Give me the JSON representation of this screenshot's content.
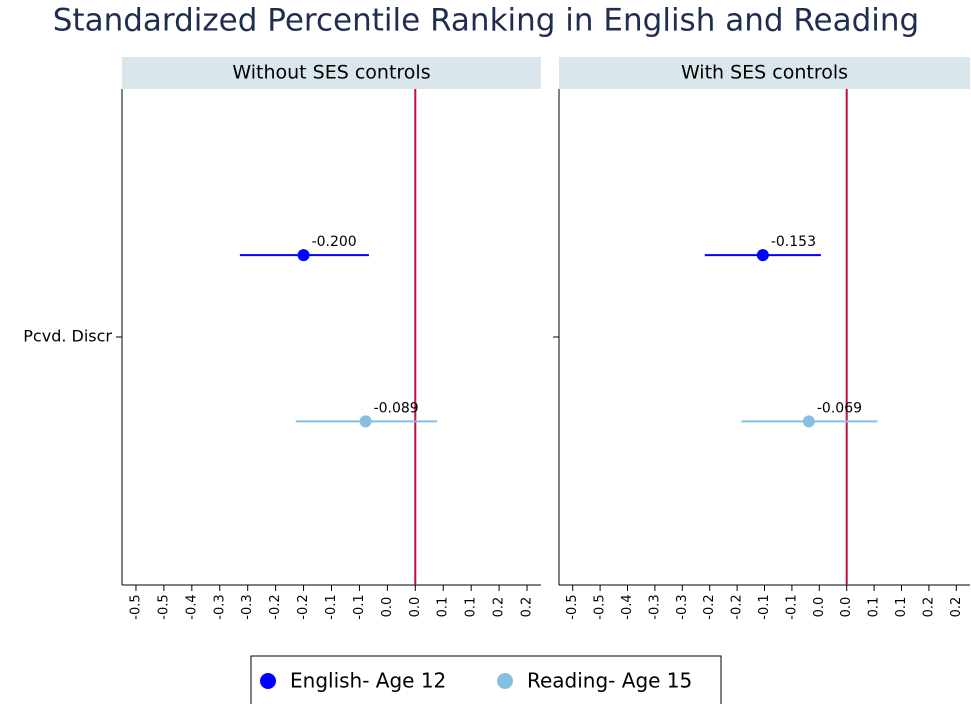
{
  "title": "Standardized Percentile Ranking in English and Reading",
  "chart_data": [
    {
      "type": "coefplot",
      "title": "Without SES controls",
      "categories": [
        "Pcvd. Discr"
      ],
      "series": [
        {
          "name": "English- Age 12",
          "color": "#0000ff",
          "values": [
            -0.2
          ],
          "lower": [
            -0.314
          ],
          "upper": [
            -0.083
          ],
          "value_labels": [
            "-0.200"
          ]
        },
        {
          "name": "Reading- Age 15",
          "color": "#87bfe3",
          "values": [
            -0.089
          ],
          "lower": [
            -0.214
          ],
          "upper": [
            0.039
          ],
          "value_labels": [
            "-0.089"
          ]
        }
      ],
      "xlim": [
        -0.525,
        0.225
      ],
      "xticks": [
        -0.5,
        {
          "value": -0.45,
          "label": "-0.5"
        },
        -0.4,
        {
          "value": -0.35,
          "label": "-0.3"
        },
        -0.3,
        {
          "value": -0.25,
          "label": "-0.2"
        },
        -0.2,
        {
          "value": -0.15,
          "label": "-0.1"
        },
        -0.1,
        {
          "value": -0.05,
          "label": "0.0"
        },
        {
          "value": 0,
          "label": "0.0"
        },
        {
          "value": 0.05,
          "label": "0.1"
        },
        0.1,
        {
          "value": 0.15,
          "label": "0.2"
        },
        0.2
      ],
      "xline": 0,
      "xline_color": "#c0103a"
    },
    {
      "type": "coefplot",
      "title": "With SES controls",
      "categories": [
        null
      ],
      "series": [
        {
          "name": "English- Age 12",
          "color": "#0000ff",
          "values": [
            -0.153
          ],
          "lower": [
            -0.259
          ],
          "upper": [
            -0.047
          ],
          "value_labels": [
            "-0.153"
          ]
        },
        {
          "name": "Reading- Age 15",
          "color": "#87bfe3",
          "values": [
            -0.069
          ],
          "lower": [
            -0.192
          ],
          "upper": [
            0.056
          ],
          "value_labels": [
            "-0.069"
          ]
        }
      ],
      "xlim": [
        -0.525,
        0.225
      ],
      "xticks": [
        -0.5,
        {
          "value": -0.45,
          "label": "-0.5"
        },
        -0.4,
        {
          "value": -0.35,
          "label": "-0.3"
        },
        -0.3,
        {
          "value": -0.25,
          "label": "-0.2"
        },
        -0.2,
        {
          "value": -0.15,
          "label": "-0.1"
        },
        -0.1,
        {
          "value": -0.05,
          "label": "0.0"
        },
        {
          "value": 0,
          "label": "0.0"
        },
        {
          "value": 0.05,
          "label": "0.1"
        },
        0.1,
        {
          "value": 0.15,
          "label": "0.2"
        },
        0.2
      ],
      "xline": 0,
      "xline_color": "#c0103a"
    }
  ]
}
